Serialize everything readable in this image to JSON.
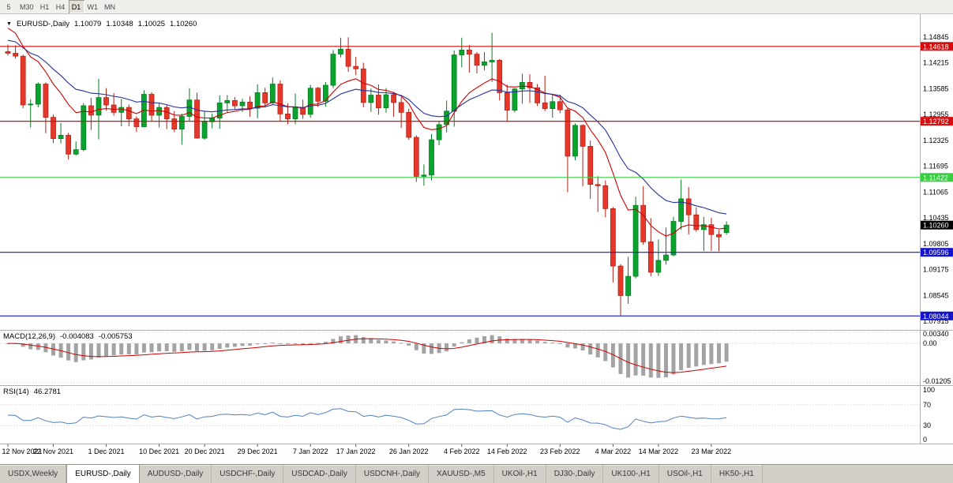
{
  "toolbar": {
    "timeframes": [
      {
        "label": "5",
        "active": false
      },
      {
        "label": "M30",
        "active": false
      },
      {
        "label": "H1",
        "active": false
      },
      {
        "label": "H4",
        "active": false
      },
      {
        "label": "D1",
        "active": true
      },
      {
        "label": "W1",
        "active": false
      },
      {
        "label": "MN",
        "active": false
      }
    ]
  },
  "main_title": {
    "symbol": "EURUSD-,Daily",
    "open": "1.10079",
    "high": "1.10348",
    "low": "1.10025",
    "close": "1.10260"
  },
  "indicator_titles": {
    "macd_name": "MACD(12,26,9)",
    "macd_main": "-0.004083",
    "macd_signal": "-0.005753",
    "rsi_name": "RSI(14)",
    "rsi_value": "46.2781"
  },
  "price_axis": {
    "labels": [
      {
        "text": "1.14845",
        "value": 1.14845
      },
      {
        "text": "1.14215",
        "value": 1.14215
      },
      {
        "text": "1.13585",
        "value": 1.13585
      },
      {
        "text": "1.12955",
        "value": 1.12955
      },
      {
        "text": "1.12325",
        "value": 1.12325
      },
      {
        "text": "1.11695",
        "value": 1.11695
      },
      {
        "text": "1.11065",
        "value": 1.11065
      },
      {
        "text": "1.10435",
        "value": 1.10435
      },
      {
        "text": "1.09805",
        "value": 1.09805
      },
      {
        "text": "1.09175",
        "value": 1.09175
      },
      {
        "text": "1.08545",
        "value": 1.08545
      },
      {
        "text": "1.07915",
        "value": 1.07915
      }
    ],
    "boxes": [
      {
        "text": "1.14618",
        "value": 1.14618,
        "color": "#d40f0f",
        "kind": "line-label"
      },
      {
        "text": "1.12792",
        "value": 1.12792,
        "color": "#d40f0f",
        "kind": "line-label"
      },
      {
        "text": "1.11422",
        "value": 1.11422,
        "color": "#35cf3f",
        "kind": "line-label"
      },
      {
        "text": "1.10260",
        "value": 1.1026,
        "color": "#000000",
        "kind": "current-price"
      },
      {
        "text": "1.09596",
        "value": 1.09596,
        "color": "#1414cc",
        "kind": "line-label"
      },
      {
        "text": "1.08044",
        "value": 1.08044,
        "color": "#1414cc",
        "kind": "line-label"
      }
    ]
  },
  "chart_data": {
    "type": "candlestick",
    "symbol": "EURUSD-",
    "timeframe": "Daily",
    "price_axis_range": {
      "top_label": 1.14845,
      "bottom_label": 1.07915,
      "label_step": 0.0063
    },
    "candles": [
      [
        "12 Nov 2021",
        1.1449,
        1.1466,
        1.144,
        1.1445
      ],
      [
        "15 Nov 2021",
        1.1445,
        1.1464,
        1.1432,
        1.1438
      ],
      [
        "16 Nov 2021",
        1.1438,
        1.1442,
        1.1311,
        1.1319
      ],
      [
        "17 Nov 2021",
        1.1319,
        1.1333,
        1.1264,
        1.1321
      ],
      [
        "18 Nov 2021",
        1.1321,
        1.1374,
        1.1313,
        1.137
      ],
      [
        "19 Nov 2021",
        1.137,
        1.1374,
        1.125,
        1.1289
      ],
      [
        "22 Nov 2021",
        1.1289,
        1.1296,
        1.1226,
        1.1237
      ],
      [
        "23 Nov 2021",
        1.1237,
        1.1275,
        1.1225,
        1.1245
      ],
      [
        "24 Nov 2021",
        1.1245,
        1.1251,
        1.1186,
        1.1199
      ],
      [
        "25 Nov 2021",
        1.1199,
        1.123,
        1.1196,
        1.121
      ],
      [
        "26 Nov 2021",
        1.121,
        1.1323,
        1.1206,
        1.1317
      ],
      [
        "29 Nov 2021",
        1.1317,
        1.1336,
        1.1258,
        1.1294
      ],
      [
        "30 Nov 2021",
        1.1294,
        1.1383,
        1.1235,
        1.1337
      ],
      [
        "1 Dec 2021",
        1.1337,
        1.136,
        1.1305,
        1.1319
      ],
      [
        "2 Dec 2021",
        1.1319,
        1.1348,
        1.1293,
        1.1301
      ],
      [
        "3 Dec 2021",
        1.1301,
        1.1334,
        1.1267,
        1.1313
      ],
      [
        "6 Dec 2021",
        1.1313,
        1.132,
        1.1267,
        1.1285
      ],
      [
        "7 Dec 2021",
        1.1285,
        1.1291,
        1.1253,
        1.1266
      ],
      [
        "8 Dec 2021",
        1.1266,
        1.1355,
        1.1264,
        1.1345
      ],
      [
        "9 Dec 2021",
        1.1345,
        1.135,
        1.128,
        1.1294
      ],
      [
        "10 Dec 2021",
        1.1294,
        1.1324,
        1.1264,
        1.1313
      ],
      [
        "13 Dec 2021",
        1.1313,
        1.1319,
        1.126,
        1.1285
      ],
      [
        "14 Dec 2021",
        1.1285,
        1.1304,
        1.1253,
        1.126
      ],
      [
        "15 Dec 2021",
        1.126,
        1.1298,
        1.1222,
        1.1291
      ],
      [
        "16 Dec 2021",
        1.1291,
        1.136,
        1.128,
        1.1331
      ],
      [
        "17 Dec 2021",
        1.1331,
        1.1349,
        1.1237,
        1.1238
      ],
      [
        "20 Dec 2021",
        1.1238,
        1.1304,
        1.1234,
        1.1278
      ],
      [
        "21 Dec 2021",
        1.1278,
        1.1298,
        1.1262,
        1.1287
      ],
      [
        "22 Dec 2021",
        1.1287,
        1.1342,
        1.1261,
        1.1324
      ],
      [
        "23 Dec 2021",
        1.1324,
        1.1343,
        1.13,
        1.133
      ],
      [
        "24 Dec 2021",
        1.133,
        1.1338,
        1.1308,
        1.1317
      ],
      [
        "27 Dec 2021",
        1.1317,
        1.1334,
        1.1302,
        1.1326
      ],
      [
        "28 Dec 2021",
        1.1326,
        1.134,
        1.129,
        1.1311
      ],
      [
        "29 Dec 2021",
        1.1311,
        1.1369,
        1.1286,
        1.1349
      ],
      [
        "30 Dec 2021",
        1.1349,
        1.1361,
        1.1315,
        1.1324
      ],
      [
        "31 Dec 2021",
        1.1324,
        1.1386,
        1.1321,
        1.137
      ],
      [
        "3 Jan 2022",
        1.137,
        1.1379,
        1.1279,
        1.1297
      ],
      [
        "4 Jan 2022",
        1.1297,
        1.1323,
        1.1272,
        1.1285
      ],
      [
        "5 Jan 2022",
        1.1285,
        1.1347,
        1.1272,
        1.1313
      ],
      [
        "6 Jan 2022",
        1.1313,
        1.1332,
        1.1285,
        1.1296
      ],
      [
        "7 Jan 2022",
        1.1296,
        1.1368,
        1.1288,
        1.136
      ],
      [
        "10 Jan 2022",
        1.136,
        1.1363,
        1.1314,
        1.1328
      ],
      [
        "11 Jan 2022",
        1.1328,
        1.1375,
        1.1315,
        1.1367
      ],
      [
        "12 Jan 2022",
        1.1367,
        1.1453,
        1.136,
        1.1443
      ],
      [
        "13 Jan 2022",
        1.1443,
        1.1483,
        1.1435,
        1.1455
      ],
      [
        "14 Jan 2022",
        1.1455,
        1.1484,
        1.14,
        1.1413
      ],
      [
        "17 Jan 2022",
        1.1413,
        1.1436,
        1.1392,
        1.1407
      ],
      [
        "18 Jan 2022",
        1.1407,
        1.1422,
        1.1313,
        1.1325
      ],
      [
        "19 Jan 2022",
        1.1325,
        1.1359,
        1.1302,
        1.1343
      ],
      [
        "20 Jan 2022",
        1.1343,
        1.1369,
        1.1295,
        1.1312
      ],
      [
        "21 Jan 2022",
        1.1312,
        1.136,
        1.13,
        1.1344
      ],
      [
        "24 Jan 2022",
        1.1344,
        1.1349,
        1.129,
        1.1325
      ],
      [
        "25 Jan 2022",
        1.1325,
        1.1338,
        1.1263,
        1.1301
      ],
      [
        "26 Jan 2022",
        1.1301,
        1.131,
        1.1234,
        1.124
      ],
      [
        "27 Jan 2022",
        1.124,
        1.1245,
        1.1131,
        1.1145
      ],
      [
        "28 Jan 2022",
        1.1145,
        1.1174,
        1.1122,
        1.1148
      ],
      [
        "31 Jan 2022",
        1.1148,
        1.1248,
        1.1135,
        1.1234
      ],
      [
        "1 Feb 2022",
        1.1234,
        1.1279,
        1.1221,
        1.1271
      ],
      [
        "2 Feb 2022",
        1.1271,
        1.133,
        1.1252,
        1.1304
      ],
      [
        "3 Feb 2022",
        1.1304,
        1.1452,
        1.1266,
        1.1441
      ],
      [
        "4 Feb 2022",
        1.1441,
        1.1483,
        1.1411,
        1.1453
      ],
      [
        "7 Feb 2022",
        1.1453,
        1.1465,
        1.1398,
        1.1443
      ],
      [
        "8 Feb 2022",
        1.1443,
        1.1448,
        1.1396,
        1.1416
      ],
      [
        "9 Feb 2022",
        1.1416,
        1.1448,
        1.1403,
        1.1424
      ],
      [
        "10 Feb 2022",
        1.1424,
        1.1495,
        1.1375,
        1.1428
      ],
      [
        "11 Feb 2022",
        1.1428,
        1.1431,
        1.133,
        1.1349
      ],
      [
        "14 Feb 2022",
        1.1349,
        1.1369,
        1.1278,
        1.1306
      ],
      [
        "15 Feb 2022",
        1.1306,
        1.136,
        1.1301,
        1.1358
      ],
      [
        "16 Feb 2022",
        1.1358,
        1.1395,
        1.1322,
        1.1374
      ],
      [
        "17 Feb 2022",
        1.1374,
        1.1394,
        1.1324,
        1.1361
      ],
      [
        "18 Feb 2022",
        1.1361,
        1.137,
        1.1316,
        1.1324
      ],
      [
        "21 Feb 2022",
        1.1324,
        1.139,
        1.1304,
        1.131
      ],
      [
        "22 Feb 2022",
        1.131,
        1.1343,
        1.1288,
        1.1327
      ],
      [
        "23 Feb 2022",
        1.1327,
        1.1344,
        1.1299,
        1.1307
      ],
      [
        "24 Feb 2022",
        1.1307,
        1.1313,
        1.1106,
        1.1194
      ],
      [
        "25 Feb 2022",
        1.1194,
        1.1274,
        1.1184,
        1.1269
      ],
      [
        "28 Feb 2022",
        1.1269,
        1.1272,
        1.1121,
        1.1218
      ],
      [
        "1 Mar 2022",
        1.1218,
        1.1232,
        1.109,
        1.1125
      ],
      [
        "2 Mar 2022",
        1.1125,
        1.1145,
        1.1058,
        1.1122
      ],
      [
        "3 Mar 2022",
        1.1122,
        1.1135,
        1.1045,
        1.1066
      ],
      [
        "4 Mar 2022",
        1.1066,
        1.107,
        1.0886,
        1.0926
      ],
      [
        "7 Mar 2022",
        1.0926,
        1.0931,
        1.0806,
        1.0854
      ],
      [
        "8 Mar 2022",
        1.0854,
        1.0949,
        1.0834,
        1.0901
      ],
      [
        "9 Mar 2022",
        1.0901,
        1.1095,
        1.0896,
        1.1074
      ],
      [
        "10 Mar 2022",
        1.1074,
        1.1121,
        1.0978,
        1.0985
      ],
      [
        "11 Mar 2022",
        1.0985,
        1.1043,
        1.0901,
        1.0911
      ],
      [
        "14 Mar 2022",
        1.0911,
        1.0991,
        1.0902,
        1.094
      ],
      [
        "15 Mar 2022",
        1.094,
        1.102,
        1.093,
        1.0953
      ],
      [
        "16 Mar 2022",
        1.0953,
        1.1046,
        1.095,
        1.1035
      ],
      [
        "17 Mar 2022",
        1.1035,
        1.1137,
        1.1015,
        1.109
      ],
      [
        "18 Mar 2022",
        1.109,
        1.1119,
        1.1003,
        1.1051
      ],
      [
        "21 Mar 2022",
        1.1051,
        1.1069,
        1.101,
        1.1015
      ],
      [
        "22 Mar 2022",
        1.1015,
        1.1046,
        1.0963,
        1.1027
      ],
      [
        "23 Mar 2022",
        1.1027,
        1.1044,
        1.0963,
        1.1003
      ],
      [
        "24 Mar 2022",
        1.1003,
        1.1014,
        1.0962,
        1.0997
      ],
      [
        "25 Mar 2022",
        1.10079,
        1.10348,
        1.10025,
        1.1026
      ]
    ],
    "date_ticks": [
      [
        0,
        "12 Nov 2021"
      ],
      [
        6,
        "22 Nov 2021"
      ],
      [
        13,
        "1 Dec 2021"
      ],
      [
        20,
        "10 Dec 2021"
      ],
      [
        26,
        "20 Dec 2021"
      ],
      [
        33,
        "29 Dec 2021"
      ],
      [
        40,
        "7 Jan 2022"
      ],
      [
        46,
        "17 Jan 2022"
      ],
      [
        53,
        "26 Jan 2022"
      ],
      [
        60,
        "4 Feb 2022"
      ],
      [
        66,
        "14 Feb 2022"
      ],
      [
        73,
        "23 Feb 2022"
      ],
      [
        80,
        "4 Mar 2022"
      ],
      [
        86,
        "14 Mar 2022"
      ],
      [
        93,
        "23 Mar 2022"
      ]
    ],
    "hlines": [
      {
        "value": 1.14618,
        "color": "#d40f0f",
        "name": "resistance-1.14618"
      },
      {
        "value": 1.12792,
        "color": "#d40f0f",
        "name": "resistance-1.12792"
      },
      {
        "value": 1.11422,
        "color": "#35cf3f",
        "name": "support-1.11422"
      },
      {
        "value": 1.09596,
        "color": "#1414cc",
        "name": "support-1.09596"
      },
      {
        "value": 1.08044,
        "color": "#1414cc",
        "name": "support-1.08044"
      }
    ],
    "moving_averages": [
      {
        "name": "ma-fast",
        "period": 10,
        "seed": 1.152,
        "color": "#cc0000"
      },
      {
        "name": "ma-slow",
        "period": 20,
        "seed": 1.148,
        "color": "#26339b"
      }
    ],
    "indicators": {
      "macd": {
        "label": "MACD(12,26,9)",
        "value_main": -0.004083,
        "value_signal": -0.005753,
        "params": [
          12,
          26,
          9
        ],
        "axis_labels": [
          {
            "text": "0.00340",
            "value": 0.0034
          },
          {
            "text": "0.00",
            "value": 0
          },
          {
            "text": "-0.01205",
            "value": -0.01205
          }
        ],
        "histogram_color": "#a3a3a3",
        "signal_color": "#cc0000"
      },
      "rsi": {
        "label": "RSI(14)",
        "value": 46.2781,
        "period": 14,
        "axis_labels": [
          {
            "text": "100",
            "value": 100
          },
          {
            "text": "70",
            "value": 70
          },
          {
            "text": "30",
            "value": 30
          },
          {
            "text": "0",
            "value": 0
          }
        ],
        "levels": [
          70,
          30
        ],
        "line_color": "#4f81bd"
      }
    },
    "colors": {
      "candle_up": "#09a32e",
      "candle_up_border": "#067a22",
      "candle_down": "#e5382b",
      "candle_down_border": "#b32015",
      "background": "#ffffff"
    }
  },
  "tabs": [
    {
      "label": "USDX,Weekly",
      "active": false
    },
    {
      "label": "EURUSD-,Daily",
      "active": true
    },
    {
      "label": "AUDUSD-,Daily",
      "active": false
    },
    {
      "label": "USDCHF-,Daily",
      "active": false
    },
    {
      "label": "USDCAD-,Daily",
      "active": false
    },
    {
      "label": "USDCNH-,Daily",
      "active": false
    },
    {
      "label": "XAUUSD-,M5",
      "active": false
    },
    {
      "label": "UKOil-,H1",
      "active": false
    },
    {
      "label": "DJ30-,Daily",
      "active": false
    },
    {
      "label": "UK100-,H1",
      "active": false
    },
    {
      "label": "USOil-,H1",
      "active": false
    },
    {
      "label": "HK50-,H1",
      "active": false
    }
  ]
}
